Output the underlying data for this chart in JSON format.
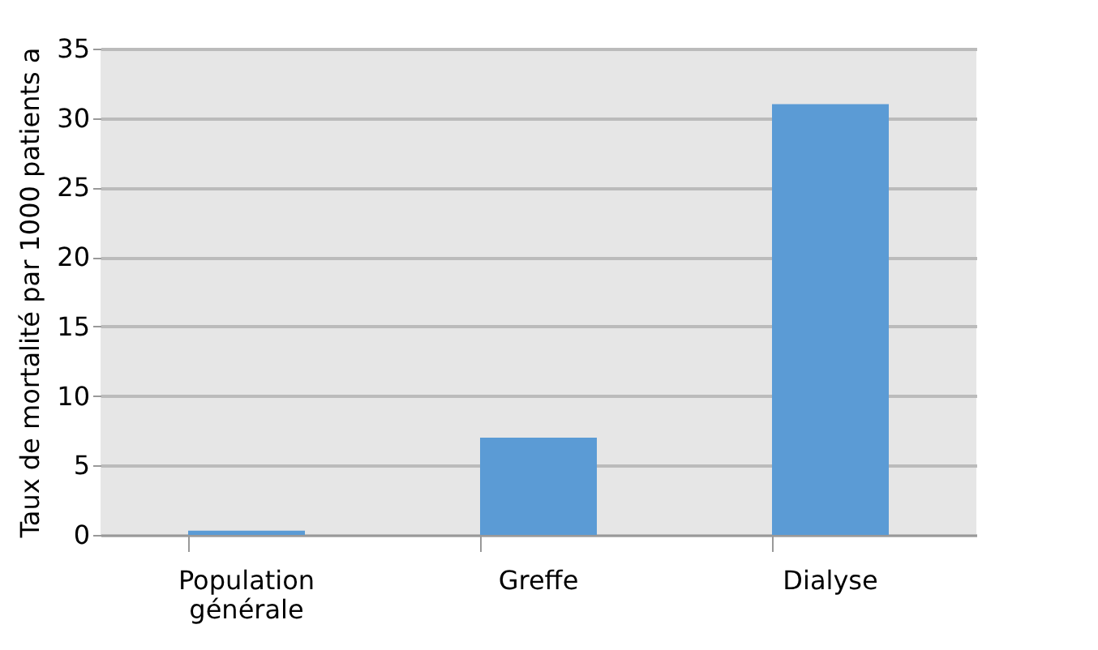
{
  "chart_data": {
    "type": "bar",
    "ylabel": "Taux de mortalité par 1000 patients a",
    "categories": [
      "Population générale",
      "Greffe",
      "Dialyse"
    ],
    "values": [
      0.3,
      7,
      31
    ],
    "color": "#5b9bd5",
    "ylim": [
      0,
      35
    ],
    "yticks": [
      0,
      5,
      10,
      15,
      20,
      25,
      30,
      35
    ],
    "grid": "y"
  }
}
